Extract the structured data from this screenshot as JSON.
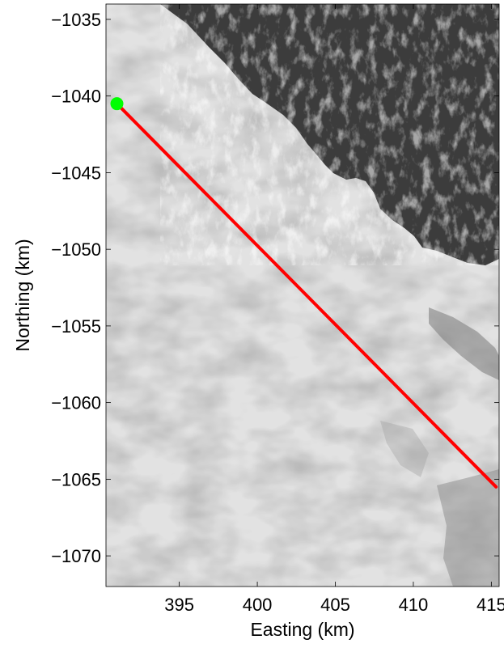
{
  "chart_data": {
    "type": "map",
    "xlabel": "Easting (km)",
    "ylabel": "Northing (km)",
    "xlim": [
      390.3,
      415.5
    ],
    "ylim": [
      -1072,
      -1034
    ],
    "x_ticks": [
      395,
      400,
      405,
      410,
      415
    ],
    "y_ticks": [
      -1035,
      -1040,
      -1045,
      -1050,
      -1055,
      -1060,
      -1065,
      -1070
    ],
    "x_tick_labels": [
      "395",
      "400",
      "405",
      "410",
      "415"
    ],
    "y_tick_labels": [
      "−1035",
      "−1040",
      "−1045",
      "−1050",
      "−1055",
      "−1060",
      "−1065",
      "−1070"
    ],
    "grid": false,
    "background": "grayscale satellite image: bright ice/snow surface with dark rocky terrain in the upper right",
    "transect": {
      "x": [
        391.0,
        415.3
      ],
      "y": [
        -1040.5,
        -1065.5
      ],
      "color": "#ff0000"
    },
    "start_marker": {
      "x": 391.0,
      "y": -1040.5,
      "color": "#00ff00"
    }
  }
}
